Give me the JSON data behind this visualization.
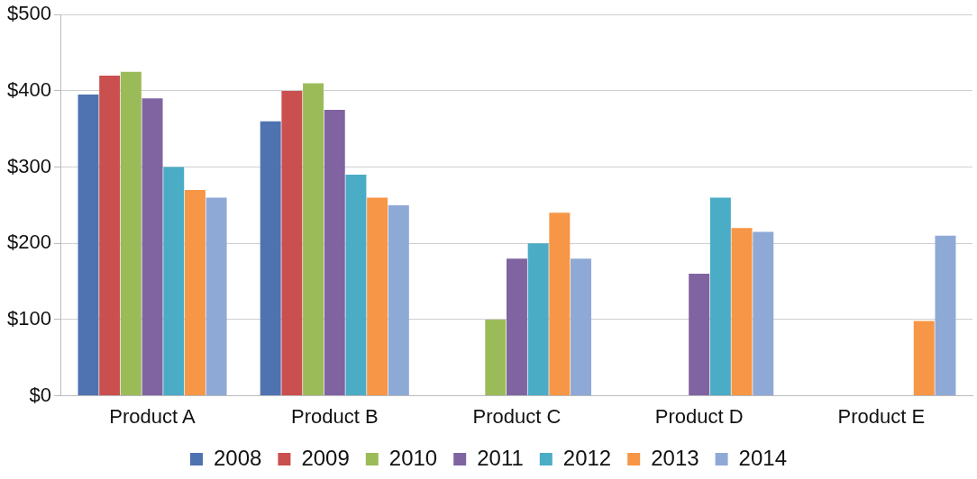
{
  "chart_data": {
    "type": "bar",
    "categories": [
      "Product A",
      "Product B",
      "Product C",
      "Product D",
      "Product E"
    ],
    "series": [
      {
        "name": "2008",
        "color": "#4f72b0",
        "values": [
          395,
          360,
          null,
          null,
          null
        ]
      },
      {
        "name": "2009",
        "color": "#c9504e",
        "values": [
          420,
          400,
          null,
          null,
          null
        ]
      },
      {
        "name": "2010",
        "color": "#9bbb59",
        "values": [
          425,
          410,
          100,
          null,
          null
        ]
      },
      {
        "name": "2011",
        "color": "#8064a2",
        "values": [
          390,
          375,
          180,
          160,
          null
        ]
      },
      {
        "name": "2012",
        "color": "#4bacc6",
        "values": [
          300,
          290,
          200,
          260,
          null
        ]
      },
      {
        "name": "2013",
        "color": "#f79646",
        "values": [
          270,
          260,
          240,
          220,
          98
        ]
      },
      {
        "name": "2014",
        "color": "#8fa9d6",
        "values": [
          260,
          250,
          180,
          215,
          210
        ]
      }
    ],
    "ylim": [
      0,
      500
    ],
    "yticks": [
      {
        "value": 0,
        "label": "$0"
      },
      {
        "value": 100,
        "label": "$100"
      },
      {
        "value": 200,
        "label": "$200"
      },
      {
        "value": 300,
        "label": "$300"
      },
      {
        "value": 400,
        "label": "$400"
      },
      {
        "value": 500,
        "label": "$500"
      }
    ],
    "grid": "y",
    "legend": "bottom"
  }
}
